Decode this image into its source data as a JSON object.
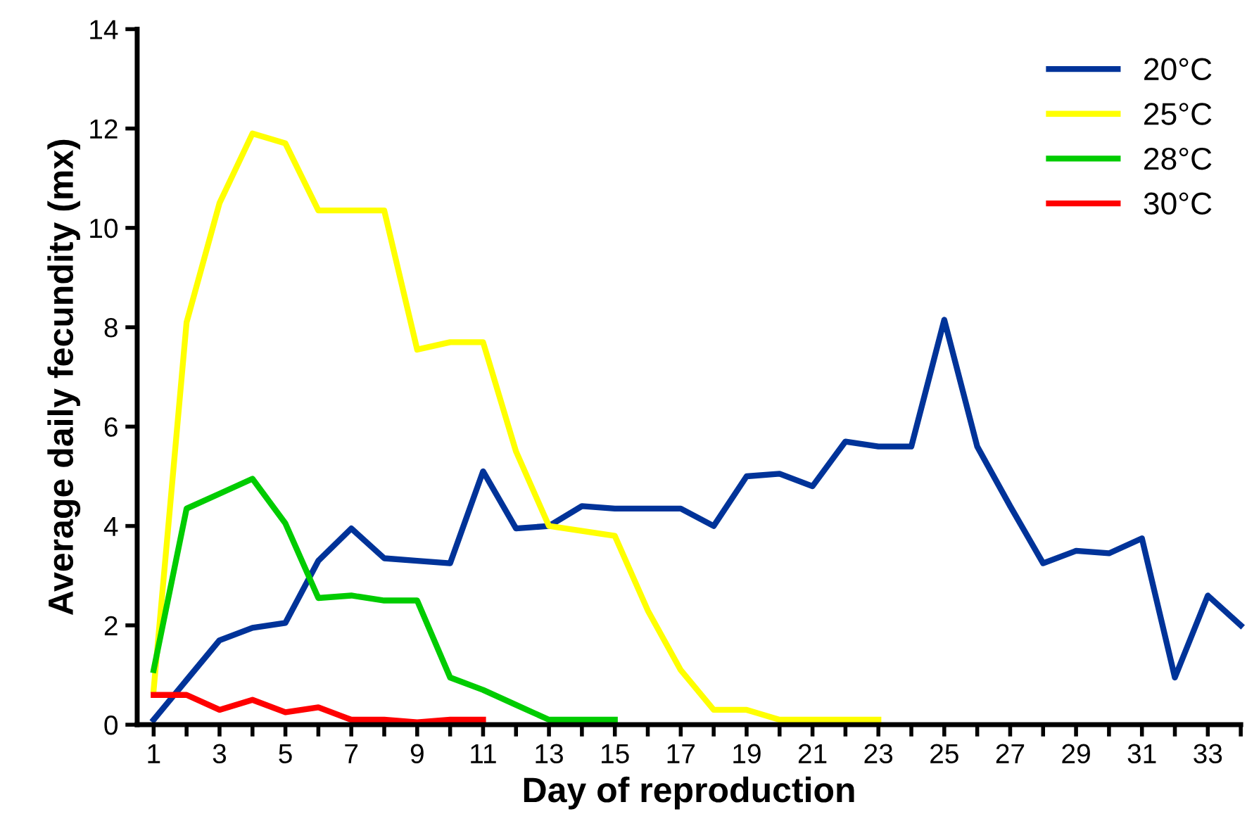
{
  "chart_data": {
    "type": "line",
    "xlabel": "Day of reproduction",
    "ylabel": "Average daily fecundity (mx)",
    "series": [
      {
        "name": "20°C",
        "color": "#003399",
        "x": [
          1,
          2,
          3,
          4,
          5,
          6,
          7,
          8,
          9,
          10,
          11,
          12,
          13,
          14,
          15,
          16,
          17,
          18,
          19,
          20,
          21,
          22,
          23,
          24,
          25,
          26,
          27,
          28,
          29,
          30,
          31,
          32,
          33,
          34
        ],
        "values": [
          0.1,
          0.9,
          1.7,
          1.95,
          2.05,
          3.3,
          3.95,
          3.35,
          3.3,
          3.25,
          5.1,
          3.95,
          4.0,
          4.4,
          4.35,
          4.35,
          4.35,
          4.0,
          5.0,
          5.05,
          4.8,
          5.7,
          5.6,
          5.6,
          8.15,
          5.6,
          4.4,
          3.25,
          3.5,
          3.45,
          3.75,
          0.95,
          2.6,
          2.0
        ]
      },
      {
        "name": "25°C",
        "color": "#ffff00",
        "x": [
          1,
          2,
          3,
          4,
          5,
          6,
          7,
          8,
          9,
          10,
          11,
          12,
          13,
          14,
          15,
          16,
          17,
          18,
          19,
          20,
          21,
          22,
          23
        ],
        "values": [
          0.7,
          8.1,
          10.5,
          11.9,
          11.7,
          10.35,
          10.35,
          10.35,
          7.55,
          7.7,
          7.7,
          5.5,
          4.0,
          3.9,
          3.8,
          2.3,
          1.1,
          0.3,
          0.3,
          0.1,
          0.1,
          0.1,
          0.1
        ]
      },
      {
        "name": "28°C",
        "color": "#00cc00",
        "x": [
          1,
          2,
          3,
          4,
          5,
          6,
          7,
          8,
          9,
          10,
          11,
          12,
          13,
          14,
          15
        ],
        "values": [
          1.1,
          4.35,
          4.65,
          4.95,
          4.05,
          2.55,
          2.6,
          2.5,
          2.5,
          0.95,
          0.7,
          0.4,
          0.1,
          0.1,
          0.1
        ]
      },
      {
        "name": "30°C",
        "color": "#ff0000",
        "x": [
          1,
          2,
          3,
          4,
          5,
          6,
          7,
          8,
          9,
          10,
          11
        ],
        "values": [
          0.6,
          0.6,
          0.3,
          0.5,
          0.25,
          0.35,
          0.1,
          0.1,
          0.05,
          0.1,
          0.1
        ]
      }
    ],
    "xlim": [
      0.5,
      34
    ],
    "ylim": [
      0,
      14
    ],
    "xticks": [
      1,
      {
        "value": 2,
        "label": null
      },
      3,
      {
        "value": 4,
        "label": null
      },
      5,
      {
        "value": 6,
        "label": null
      },
      7,
      {
        "value": 8,
        "label": null
      },
      9,
      {
        "value": 10,
        "label": null
      },
      11,
      {
        "value": 12,
        "label": null
      },
      13,
      {
        "value": 14,
        "label": null
      },
      15,
      {
        "value": 16,
        "label": null
      },
      17,
      {
        "value": 18,
        "label": null
      },
      19,
      {
        "value": 20,
        "label": null
      },
      21,
      {
        "value": 22,
        "label": null
      },
      23,
      {
        "value": 24,
        "label": null
      },
      25,
      {
        "value": 26,
        "label": null
      },
      27,
      {
        "value": 28,
        "label": null
      },
      29,
      {
        "value": 30,
        "label": null
      },
      31,
      {
        "value": 32,
        "label": null
      },
      33,
      {
        "value": 34,
        "label": null
      }
    ],
    "yticks": [
      0,
      2,
      4,
      6,
      8,
      10,
      12,
      14
    ],
    "grid": false,
    "legend": "top right",
    "marker": "none",
    "line_style": "solid"
  }
}
